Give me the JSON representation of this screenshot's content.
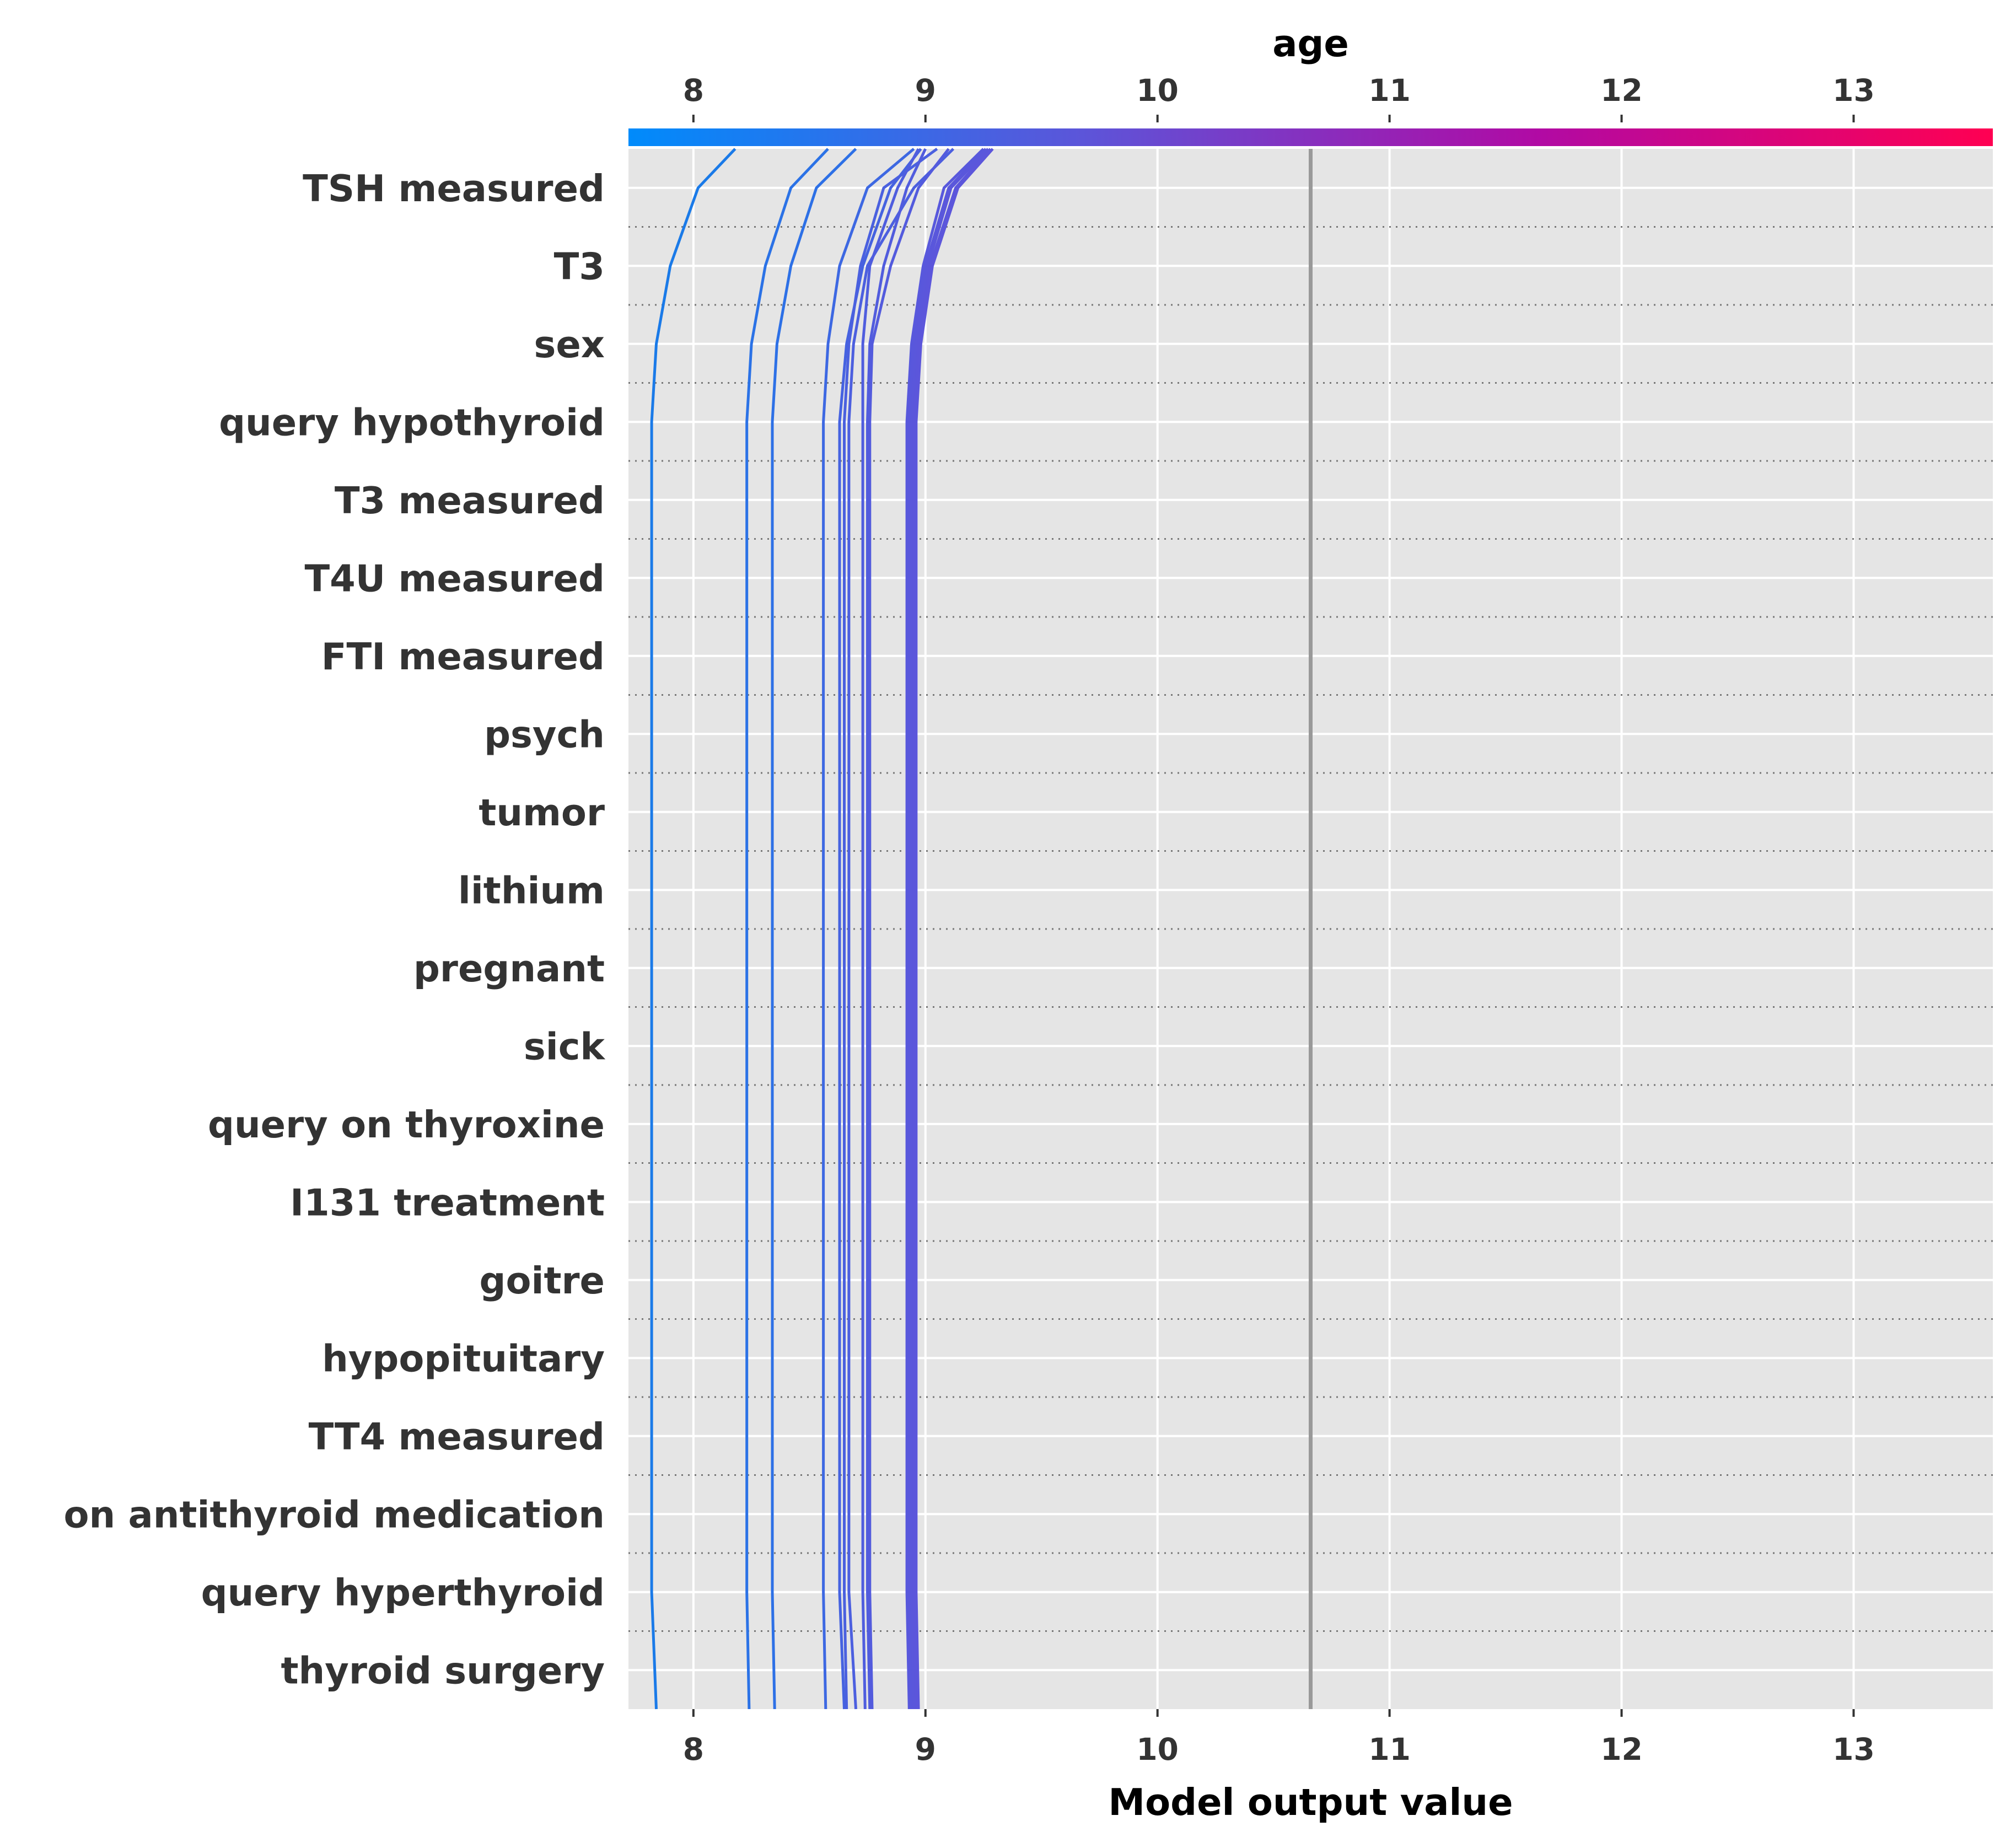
{
  "chart_data": {
    "type": "line",
    "plot_kind": "decision plot",
    "xlabel": "Model output value",
    "colorbar_label": "age",
    "xlim": [
      7.72,
      13.6
    ],
    "xticks": [
      8,
      9,
      10,
      11,
      12,
      13
    ],
    "base_value": 10.66,
    "colorbar_gradient": [
      "#008bfb",
      "#5c55d9",
      "#b10aa4",
      "#ff0052"
    ],
    "grid": true,
    "background": "#e5e5e5",
    "features": [
      "TSH measured",
      "T3",
      "sex",
      "query hypothyroid",
      "T3 measured",
      "T4U measured",
      "FTI measured",
      "psych",
      "tumor",
      "lithium",
      "pregnant",
      "sick",
      "query on thyroxine",
      "I131 treatment",
      "goitre",
      "hypopituitary",
      "TT4 measured",
      "on antithyroid medication",
      "query hyperthyroid",
      "thyroid surgery"
    ],
    "series_note": "Each line traces one sample's cumulative output from bottom (thyroid surgery) to top (TSH measured); values listed top to bottom starting at the colorbar.",
    "series": [
      {
        "color": "#1a7ae8",
        "values": [
          8.18,
          8.02,
          7.9,
          7.84,
          7.82,
          7.82,
          7.82,
          7.82,
          7.82,
          7.82,
          7.82,
          7.82,
          7.82,
          7.82,
          7.82,
          7.82,
          7.82,
          7.82,
          7.82,
          7.82,
          7.84
        ]
      },
      {
        "color": "#2b72e6",
        "values": [
          8.58,
          8.42,
          8.31,
          8.25,
          8.23,
          8.23,
          8.23,
          8.23,
          8.23,
          8.23,
          8.23,
          8.23,
          8.23,
          8.23,
          8.23,
          8.23,
          8.23,
          8.23,
          8.23,
          8.23,
          8.24
        ]
      },
      {
        "color": "#2d70e6",
        "values": [
          8.7,
          8.53,
          8.42,
          8.36,
          8.34,
          8.34,
          8.34,
          8.34,
          8.34,
          8.34,
          8.34,
          8.34,
          8.34,
          8.34,
          8.34,
          8.34,
          8.34,
          8.34,
          8.34,
          8.34,
          8.35
        ]
      },
      {
        "color": "#3d68e2",
        "values": [
          8.95,
          8.75,
          8.63,
          8.58,
          8.56,
          8.56,
          8.56,
          8.56,
          8.56,
          8.56,
          8.56,
          8.56,
          8.56,
          8.56,
          8.56,
          8.56,
          8.56,
          8.56,
          8.56,
          8.56,
          8.57
        ]
      },
      {
        "color": "#4562e0",
        "values": [
          8.98,
          8.85,
          8.73,
          8.66,
          8.63,
          8.63,
          8.63,
          8.63,
          8.63,
          8.63,
          8.63,
          8.63,
          8.63,
          8.63,
          8.63,
          8.63,
          8.63,
          8.63,
          8.63,
          8.63,
          8.65
        ]
      },
      {
        "color": "#4a60df",
        "values": [
          9.05,
          8.82,
          8.72,
          8.67,
          8.65,
          8.65,
          8.65,
          8.65,
          8.65,
          8.65,
          8.65,
          8.65,
          8.65,
          8.65,
          8.65,
          8.65,
          8.65,
          8.65,
          8.65,
          8.65,
          8.66
        ]
      },
      {
        "color": "#4c5fdf",
        "values": [
          9.12,
          8.95,
          8.75,
          8.69,
          8.67,
          8.67,
          8.67,
          8.67,
          8.67,
          8.67,
          8.67,
          8.67,
          8.67,
          8.67,
          8.67,
          8.67,
          8.67,
          8.67,
          8.67,
          8.67,
          8.7
        ]
      },
      {
        "color": "#4f5dde",
        "values": [
          8.97,
          8.88,
          8.76,
          8.73,
          8.73,
          8.73,
          8.73,
          8.73,
          8.73,
          8.73,
          8.73,
          8.73,
          8.73,
          8.73,
          8.73,
          8.73,
          8.73,
          8.73,
          8.73,
          8.73,
          8.74
        ]
      },
      {
        "color": "#515cdd",
        "values": [
          9.0,
          8.92,
          8.82,
          8.76,
          8.75,
          8.75,
          8.75,
          8.75,
          8.75,
          8.75,
          8.75,
          8.75,
          8.75,
          8.75,
          8.75,
          8.75,
          8.75,
          8.75,
          8.75,
          8.75,
          8.76
        ]
      },
      {
        "color": "#535bdd",
        "values": [
          9.1,
          8.97,
          8.85,
          8.77,
          8.76,
          8.76,
          8.76,
          8.76,
          8.76,
          8.76,
          8.76,
          8.76,
          8.76,
          8.76,
          8.76,
          8.76,
          8.76,
          8.76,
          8.76,
          8.76,
          8.77
        ]
      },
      {
        "color": "#5858dc",
        "values": [
          9.25,
          9.08,
          8.99,
          8.94,
          8.92,
          8.92,
          8.92,
          8.92,
          8.92,
          8.92,
          8.92,
          8.92,
          8.92,
          8.92,
          8.92,
          8.92,
          8.92,
          8.92,
          8.92,
          8.92,
          8.93
        ]
      },
      {
        "color": "#5957dc",
        "values": [
          9.26,
          9.1,
          9.0,
          8.95,
          8.93,
          8.93,
          8.93,
          8.93,
          8.93,
          8.93,
          8.93,
          8.93,
          8.93,
          8.93,
          8.93,
          8.93,
          8.93,
          8.93,
          8.93,
          8.93,
          8.94
        ]
      },
      {
        "color": "#5a57db",
        "values": [
          9.27,
          9.11,
          9.01,
          8.96,
          8.94,
          8.94,
          8.94,
          8.94,
          8.94,
          8.94,
          8.94,
          8.94,
          8.94,
          8.94,
          8.94,
          8.94,
          8.94,
          8.94,
          8.94,
          8.94,
          8.95
        ]
      },
      {
        "color": "#5b56db",
        "values": [
          9.28,
          9.13,
          9.02,
          8.97,
          8.95,
          8.95,
          8.95,
          8.95,
          8.95,
          8.95,
          8.95,
          8.95,
          8.95,
          8.95,
          8.95,
          8.95,
          8.95,
          8.95,
          8.95,
          8.95,
          8.96
        ]
      },
      {
        "color": "#5c56db",
        "values": [
          9.29,
          9.14,
          9.03,
          8.98,
          8.96,
          8.96,
          8.96,
          8.96,
          8.96,
          8.96,
          8.96,
          8.96,
          8.96,
          8.96,
          8.96,
          8.96,
          8.96,
          8.96,
          8.96,
          8.96,
          8.97
        ]
      }
    ]
  }
}
